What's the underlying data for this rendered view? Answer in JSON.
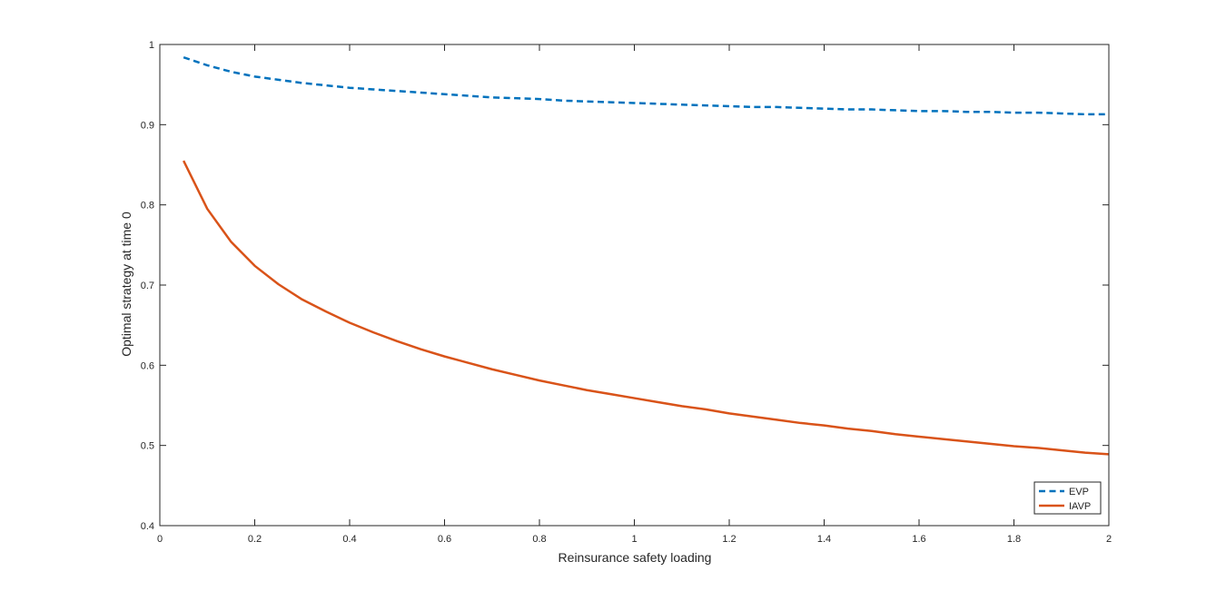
{
  "chart_data": {
    "type": "line",
    "xlabel": "Reinsurance safety loading",
    "ylabel": "Optimal strategy at time 0",
    "xlim": [
      0,
      2
    ],
    "ylim": [
      0.4,
      1
    ],
    "xticks": [
      0,
      0.2,
      0.4,
      0.6,
      0.8,
      1,
      1.2,
      1.4,
      1.6,
      1.8,
      2
    ],
    "xtick_labels": [
      "0",
      "0.2",
      "0.4",
      "0.6",
      "0.8",
      "1",
      "1.2",
      "1.4",
      "1.6",
      "1.8",
      "2"
    ],
    "yticks": [
      0.4,
      0.5,
      0.6,
      0.7,
      0.8,
      0.9,
      1
    ],
    "ytick_labels": [
      "0.4",
      "0.5",
      "0.6",
      "0.7",
      "0.8",
      "0.9",
      "1"
    ],
    "grid": false,
    "legend_position": "bottom-right",
    "series": [
      {
        "name": "EVP",
        "color": "#0072BD",
        "style": "dashed",
        "x": [
          0.05,
          0.1,
          0.15,
          0.2,
          0.25,
          0.3,
          0.35,
          0.4,
          0.45,
          0.5,
          0.55,
          0.6,
          0.65,
          0.7,
          0.75,
          0.8,
          0.85,
          0.9,
          0.95,
          1.0,
          1.05,
          1.1,
          1.15,
          1.2,
          1.25,
          1.3,
          1.35,
          1.4,
          1.45,
          1.5,
          1.55,
          1.6,
          1.65,
          1.7,
          1.75,
          1.8,
          1.85,
          1.9,
          1.95,
          2.0
        ],
        "y": [
          0.984,
          0.974,
          0.966,
          0.96,
          0.956,
          0.952,
          0.949,
          0.946,
          0.944,
          0.942,
          0.94,
          0.938,
          0.936,
          0.934,
          0.933,
          0.932,
          0.93,
          0.929,
          0.928,
          0.927,
          0.926,
          0.925,
          0.924,
          0.923,
          0.922,
          0.922,
          0.921,
          0.92,
          0.919,
          0.919,
          0.918,
          0.917,
          0.917,
          0.916,
          0.916,
          0.915,
          0.915,
          0.914,
          0.913,
          0.913
        ]
      },
      {
        "name": "IAVP",
        "color": "#D95319",
        "style": "solid",
        "x": [
          0.05,
          0.1,
          0.15,
          0.2,
          0.25,
          0.3,
          0.35,
          0.4,
          0.45,
          0.5,
          0.55,
          0.6,
          0.65,
          0.7,
          0.75,
          0.8,
          0.85,
          0.9,
          0.95,
          1.0,
          1.05,
          1.1,
          1.15,
          1.2,
          1.25,
          1.3,
          1.35,
          1.4,
          1.45,
          1.5,
          1.55,
          1.6,
          1.65,
          1.7,
          1.75,
          1.8,
          1.85,
          1.9,
          1.95,
          2.0
        ],
        "y": [
          0.855,
          0.795,
          0.754,
          0.724,
          0.701,
          0.682,
          0.667,
          0.653,
          0.641,
          0.63,
          0.62,
          0.611,
          0.603,
          0.595,
          0.588,
          0.581,
          0.575,
          0.569,
          0.564,
          0.559,
          0.554,
          0.549,
          0.545,
          0.54,
          0.536,
          0.532,
          0.528,
          0.525,
          0.521,
          0.518,
          0.514,
          0.511,
          0.508,
          0.505,
          0.502,
          0.499,
          0.497,
          0.494,
          0.491,
          0.489
        ]
      }
    ]
  }
}
